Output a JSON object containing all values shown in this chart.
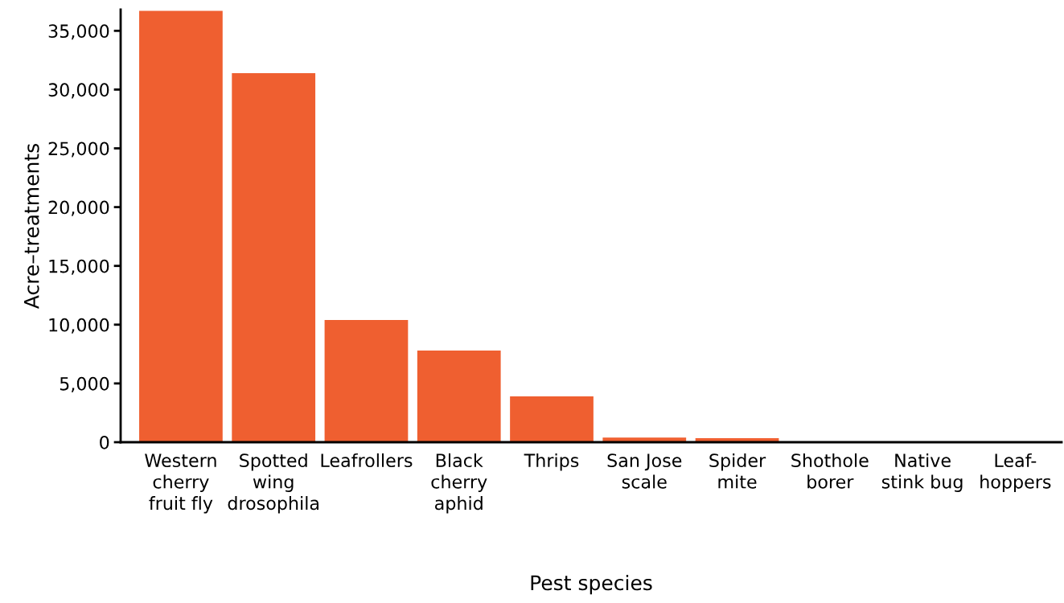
{
  "chart_data": {
    "type": "bar",
    "xlabel": "Pest species",
    "ylabel": "Acre–treatments",
    "categories": [
      "Western\ncherry\nfruit fly",
      "Spotted\nwing\ndrosophila",
      "Leafrollers",
      "Black\ncherry\naphid",
      "Thrips",
      "San Jose\nscale",
      "Spider\nmite",
      "Shothole\nborer",
      "Native\nstink bug",
      "Leaf-\nhoppers"
    ],
    "values": [
      36700,
      31400,
      10400,
      7800,
      3900,
      400,
      350,
      null,
      null,
      null
    ],
    "color": "#ef5f30",
    "ylim": [
      0,
      36800
    ],
    "yticks": [
      {
        "value": 0,
        "label": "0"
      },
      {
        "value": 5000,
        "label": "5,000"
      },
      {
        "value": 10000,
        "label": "10,000"
      },
      {
        "value": 15000,
        "label": "15,000"
      },
      {
        "value": 20000,
        "label": "20,000"
      },
      {
        "value": 25000,
        "label": "25,000"
      },
      {
        "value": 30000,
        "label": "30,000"
      },
      {
        "value": 35000,
        "label": "35,000"
      }
    ],
    "grid": false,
    "legend": false
  }
}
